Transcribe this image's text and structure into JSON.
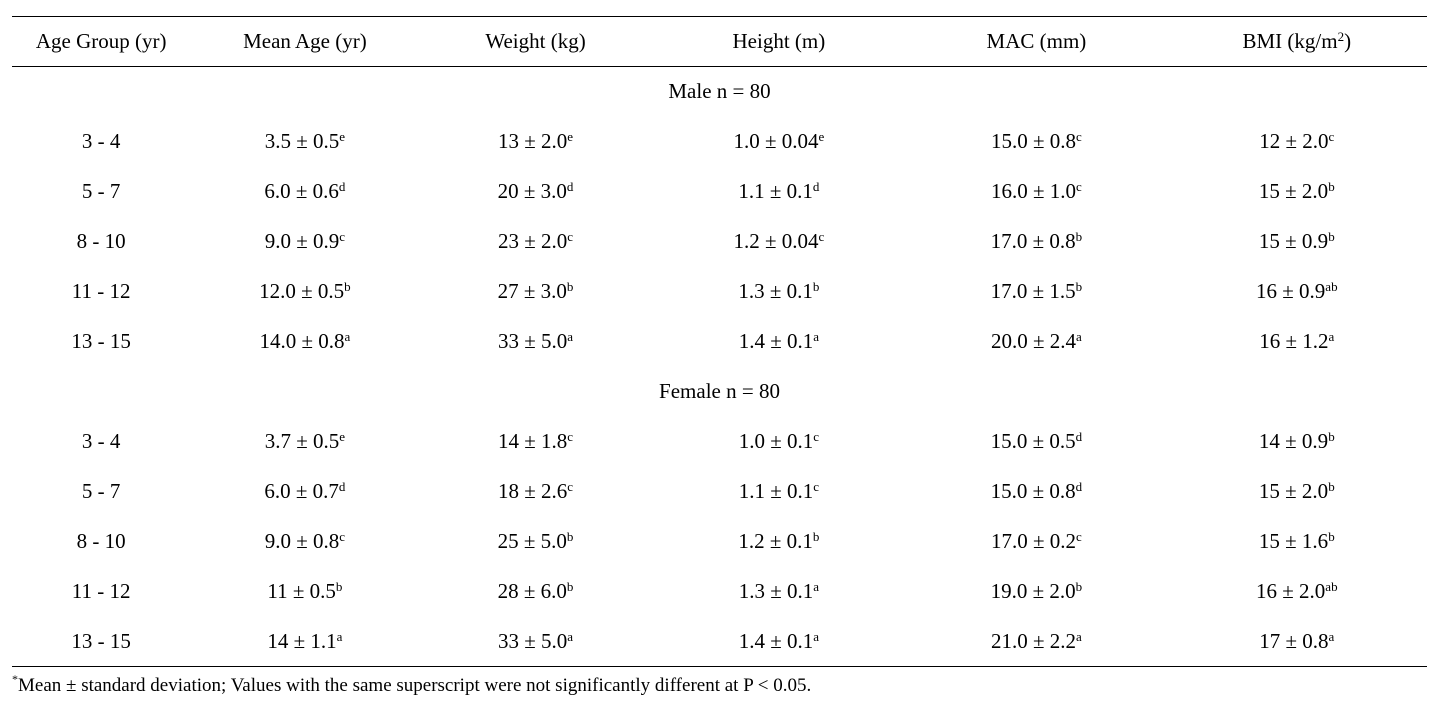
{
  "table": {
    "headers": [
      {
        "text": "Age Group (yr)",
        "sup": ""
      },
      {
        "text": "Mean Age (yr)",
        "sup": ""
      },
      {
        "text": "Weight (kg)",
        "sup": ""
      },
      {
        "text": "Height (m)",
        "sup": ""
      },
      {
        "text": "MAC (mm)",
        "sup": ""
      },
      {
        "text": "BMI (kg/m",
        "sup": "2",
        "suffix": ")"
      }
    ],
    "groups": [
      {
        "label": "Male n = 80",
        "rows": [
          [
            {
              "v": "3 - 4",
              "s": ""
            },
            {
              "v": "3.5 ± 0.5",
              "s": "e"
            },
            {
              "v": "13 ± 2.0",
              "s": "e"
            },
            {
              "v": "1.0 ± 0.04",
              "s": "e"
            },
            {
              "v": "15.0 ± 0.8",
              "s": "c"
            },
            {
              "v": "12 ± 2.0",
              "s": "c"
            }
          ],
          [
            {
              "v": "5 - 7",
              "s": ""
            },
            {
              "v": "6.0 ± 0.6",
              "s": "d"
            },
            {
              "v": "20 ± 3.0",
              "s": "d"
            },
            {
              "v": "1.1 ± 0.1",
              "s": "d"
            },
            {
              "v": "16.0 ± 1.0",
              "s": "c"
            },
            {
              "v": "15 ± 2.0",
              "s": "b"
            }
          ],
          [
            {
              "v": "8 - 10",
              "s": ""
            },
            {
              "v": "9.0 ± 0.9",
              "s": "c"
            },
            {
              "v": "23 ± 2.0",
              "s": "c"
            },
            {
              "v": "1.2 ± 0.04",
              "s": "c"
            },
            {
              "v": "17.0 ± 0.8",
              "s": "b"
            },
            {
              "v": "15 ± 0.9",
              "s": "b"
            }
          ],
          [
            {
              "v": "11 - 12",
              "s": ""
            },
            {
              "v": "12.0 ± 0.5",
              "s": "b"
            },
            {
              "v": "27 ± 3.0",
              "s": "b"
            },
            {
              "v": "1.3 ± 0.1",
              "s": "b"
            },
            {
              "v": "17.0 ± 1.5",
              "s": "b"
            },
            {
              "v": "16 ± 0.9",
              "s": "ab"
            }
          ],
          [
            {
              "v": "13 - 15",
              "s": ""
            },
            {
              "v": "14.0 ± 0.8",
              "s": "a"
            },
            {
              "v": "33 ± 5.0",
              "s": "a"
            },
            {
              "v": "1.4 ± 0.1",
              "s": "a"
            },
            {
              "v": "20.0 ± 2.4",
              "s": "a"
            },
            {
              "v": "16 ± 1.2",
              "s": "a"
            }
          ]
        ]
      },
      {
        "label": "Female n = 80",
        "rows": [
          [
            {
              "v": "3 - 4",
              "s": ""
            },
            {
              "v": "3.7 ± 0.5",
              "s": "e"
            },
            {
              "v": "14 ± 1.8",
              "s": "c"
            },
            {
              "v": "1.0 ± 0.1",
              "s": "c"
            },
            {
              "v": "15.0 ± 0.5",
              "s": "d"
            },
            {
              "v": "14 ± 0.9",
              "s": "b"
            }
          ],
          [
            {
              "v": "5 - 7",
              "s": ""
            },
            {
              "v": "6.0 ± 0.7",
              "s": "d"
            },
            {
              "v": "18 ± 2.6",
              "s": "c"
            },
            {
              "v": "1.1 ± 0.1",
              "s": "c"
            },
            {
              "v": "15.0 ± 0.8",
              "s": "d"
            },
            {
              "v": "15 ± 2.0",
              "s": "b"
            }
          ],
          [
            {
              "v": "8 - 10",
              "s": ""
            },
            {
              "v": "9.0 ± 0.8",
              "s": "c"
            },
            {
              "v": "25 ± 5.0",
              "s": "b"
            },
            {
              "v": "1.2 ± 0.1",
              "s": "b"
            },
            {
              "v": "17.0 ± 0.2",
              "s": "c"
            },
            {
              "v": "15 ± 1.6",
              "s": "b"
            }
          ],
          [
            {
              "v": "11 - 12",
              "s": ""
            },
            {
              "v": "11 ± 0.5",
              "s": "b"
            },
            {
              "v": "28 ± 6.0",
              "s": "b"
            },
            {
              "v": "1.3 ± 0.1",
              "s": "a"
            },
            {
              "v": "19.0 ± 2.0",
              "s": "b"
            },
            {
              "v": "16 ± 2.0",
              "s": "ab"
            }
          ],
          [
            {
              "v": "13 - 15",
              "s": ""
            },
            {
              "v": "14 ± 1.1",
              "s": "a"
            },
            {
              "v": "33 ± 5.0",
              "s": "a"
            },
            {
              "v": "1.4 ± 0.1",
              "s": "a"
            },
            {
              "v": "21.0 ± 2.2",
              "s": "a"
            },
            {
              "v": "17 ± 0.8",
              "s": "a"
            }
          ]
        ]
      }
    ]
  },
  "footnote": {
    "marker": "*",
    "text": "Mean ± standard deviation; Values with the same superscript were not significantly different at P < 0.05."
  }
}
